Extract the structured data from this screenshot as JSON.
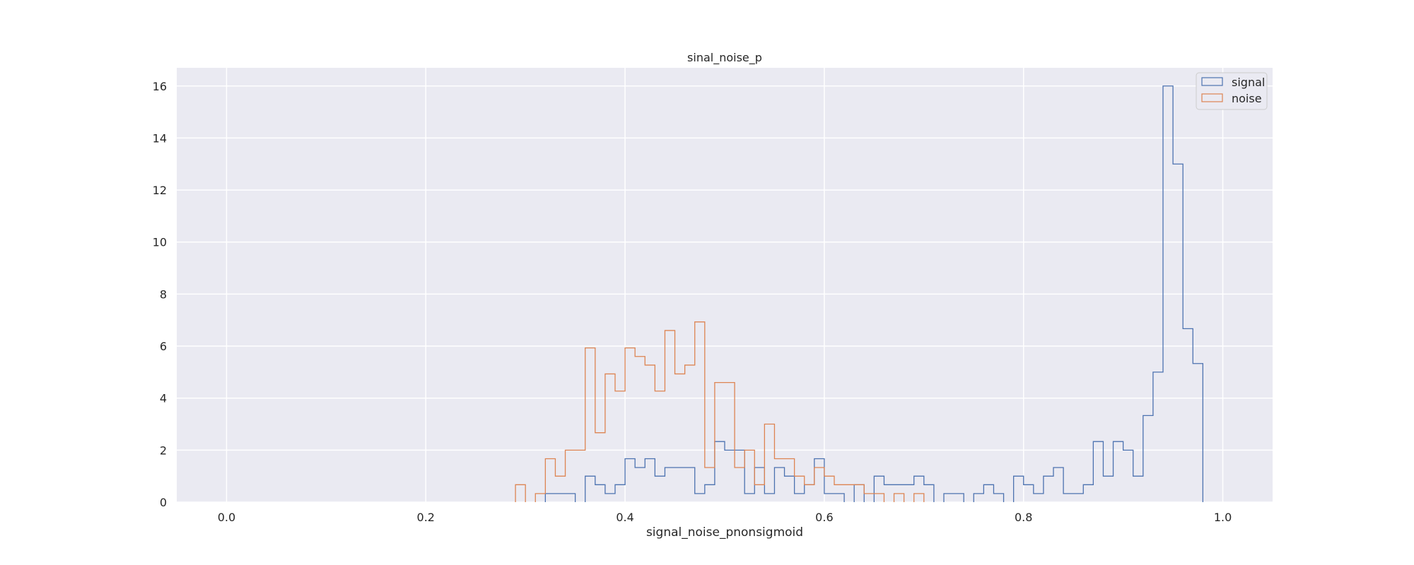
{
  "chart_data": {
    "type": "histogram-step",
    "title": "sinal_noise_p",
    "xlabel": "signal_noise_pnonsigmoid",
    "ylabel": "",
    "xlim": [
      -0.05,
      1.05
    ],
    "ylim": [
      0,
      16.7
    ],
    "xticks": [
      0.0,
      0.2,
      0.4,
      0.6,
      0.8,
      1.0
    ],
    "xtick_labels": [
      "0.0",
      "0.2",
      "0.4",
      "0.6",
      "0.8",
      "1.0"
    ],
    "yticks": [
      0,
      2,
      4,
      6,
      8,
      10,
      12,
      14,
      16
    ],
    "ytick_labels": [
      "0",
      "2",
      "4",
      "6",
      "8",
      "10",
      "12",
      "14",
      "16"
    ],
    "grid": true,
    "legend_position": "top-right",
    "bin_width": 0.01,
    "series": [
      {
        "name": "signal",
        "color": "#4c72b0",
        "x_start": 0.32,
        "values": [
          0.33,
          0.33,
          0.33,
          0,
          1.0,
          0.67,
          0.33,
          0.67,
          1.67,
          1.33,
          1.67,
          1.0,
          1.33,
          1.33,
          1.33,
          0.33,
          0.67,
          2.33,
          2.0,
          2.0,
          0.33,
          1.33,
          0.33,
          1.33,
          1.0,
          0.33,
          0.67,
          1.67,
          0.33,
          0.33,
          0,
          0.67,
          0,
          1.0,
          0.67,
          0.67,
          0.67,
          1.0,
          0.67,
          0,
          0.33,
          0.33,
          0,
          0.33,
          0.67,
          0.33,
          0,
          1.0,
          0.67,
          0.33,
          1.0,
          1.33,
          0.33,
          0.33,
          0.67,
          2.33,
          1.0,
          2.33,
          2.0,
          1.0,
          3.33,
          5.0,
          16.0,
          13.0,
          6.67,
          5.33
        ]
      },
      {
        "name": "noise",
        "color": "#dd8452",
        "x_start": 0.29,
        "values": [
          0.67,
          0,
          0.33,
          1.67,
          1.0,
          2.0,
          2.0,
          5.93,
          2.67,
          4.93,
          4.27,
          5.93,
          5.6,
          5.27,
          4.27,
          6.6,
          4.93,
          5.27,
          6.93,
          1.33,
          4.6,
          4.6,
          1.33,
          2.0,
          0.67,
          3.0,
          1.67,
          1.67,
          1.0,
          0.67,
          1.33,
          1.0,
          0.67,
          0.67,
          0.67,
          0.33,
          0.33,
          0,
          0.33,
          0,
          0.33
        ]
      }
    ]
  }
}
